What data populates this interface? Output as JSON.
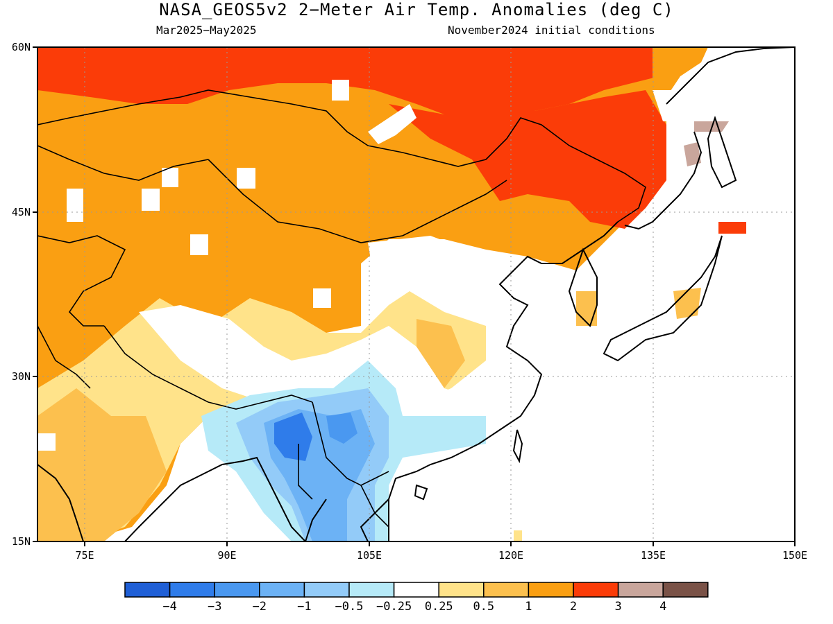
{
  "title": "NASA_GEOS5v2 2−Meter Air Temp. Anomalies (deg C)",
  "subtitle_left": "Mar2025−May2025",
  "subtitle_right": "November2024 initial conditions",
  "map": {
    "lon_range": [
      70,
      150
    ],
    "lat_range": [
      15,
      60
    ],
    "lon_ticks": [
      "75E",
      "90E",
      "105E",
      "120E",
      "135E",
      "150E"
    ],
    "lat_ticks": [
      "15N",
      "30N",
      "45N",
      "60N"
    ]
  },
  "colorbar": {
    "colors": [
      "#1f5fd6",
      "#2f7cea",
      "#4a98f0",
      "#6cb2f5",
      "#93cbf8",
      "#b6eaf8",
      "#ffffff",
      "#ffe38a",
      "#fcc04e",
      "#fa9f12",
      "#fb3c08",
      "#c9a69c",
      "#7a5247"
    ],
    "labels": [
      "−4",
      "−3",
      "−2",
      "−1",
      "−0.5",
      "−0.25",
      "0.25",
      "0.5",
      "1",
      "2",
      "3",
      "4"
    ]
  }
}
